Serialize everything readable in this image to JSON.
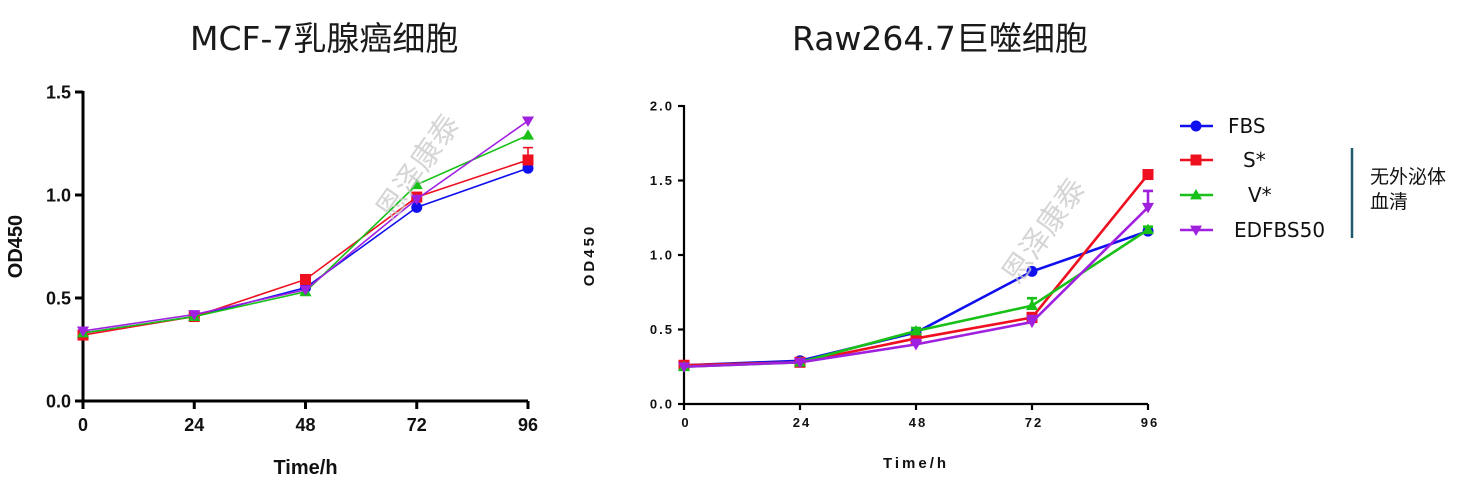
{
  "colors": {
    "FBS": "#1010ee",
    "S": "#ee1020",
    "V": "#18c018",
    "EDFBS50": "#a020e0",
    "bracket": "#1d5a6a",
    "edfbs_label": "#c00000"
  },
  "watermark": "恩泽康泰",
  "legend": {
    "entries": [
      {
        "label": "FBS",
        "series": "FBS",
        "marker": "circle"
      },
      {
        "label": "S*",
        "series": "S",
        "marker": "square"
      },
      {
        "label": "V*",
        "series": "V",
        "marker": "triangle-up"
      },
      {
        "label": "EDFBS50",
        "series": "EDFBS50",
        "marker": "triangle-down"
      }
    ],
    "bracket_line1": "无外泌体",
    "bracket_line2": "血清"
  },
  "chart_data": [
    {
      "type": "line",
      "title": "MCF-7乳腺癌细胞",
      "xlabel": "Time/h",
      "ylabel": "OD450",
      "x": [
        0,
        24,
        48,
        72,
        96
      ],
      "xticks": [
        "0",
        "24",
        "48",
        "72",
        "96"
      ],
      "yticks": [
        "0.0",
        "0.5",
        "1.0",
        "1.5"
      ],
      "ylim": [
        0,
        1.5
      ],
      "xlim": [
        0,
        96
      ],
      "series": [
        {
          "name": "FBS",
          "marker": "circle",
          "values": [
            0.33,
            0.41,
            0.55,
            0.94,
            1.13
          ],
          "errors": [
            0.01,
            0.01,
            0.01,
            0.01,
            0.03
          ]
        },
        {
          "name": "S*",
          "marker": "square",
          "values": [
            0.32,
            0.41,
            0.59,
            0.99,
            1.17
          ],
          "errors": [
            0.01,
            0.01,
            0.01,
            0.02,
            0.06
          ]
        },
        {
          "name": "V*",
          "marker": "triangle-up",
          "values": [
            0.33,
            0.41,
            0.53,
            1.05,
            1.29
          ],
          "errors": [
            0.01,
            0.01,
            0.01,
            0.01,
            0.01
          ]
        },
        {
          "name": "EDFBS50",
          "marker": "triangle-down",
          "values": [
            0.34,
            0.42,
            0.54,
            0.98,
            1.36
          ],
          "errors": [
            0.01,
            0.01,
            0.01,
            0.01,
            0.01
          ]
        }
      ]
    },
    {
      "type": "line",
      "title": "Raw264.7巨噬细胞",
      "xlabel": "Time/h",
      "ylabel": "OD450",
      "x": [
        0,
        24,
        48,
        72,
        96
      ],
      "xticks": [
        "0",
        "24",
        "48",
        "72",
        "96"
      ],
      "yticks": [
        "0.0",
        "0.5",
        "1.0",
        "1.5",
        "2.0"
      ],
      "ylim": [
        0,
        2.0
      ],
      "xlim": [
        0,
        96
      ],
      "series": [
        {
          "name": "FBS",
          "marker": "circle",
          "values": [
            0.26,
            0.29,
            0.48,
            0.89,
            1.16
          ],
          "errors": [
            0.01,
            0.01,
            0.01,
            0.01,
            0.01
          ]
        },
        {
          "name": "S*",
          "marker": "square",
          "values": [
            0.26,
            0.28,
            0.44,
            0.58,
            1.54
          ],
          "errors": [
            0.01,
            0.01,
            0.02,
            0.03,
            0.01
          ]
        },
        {
          "name": "V*",
          "marker": "triangle-up",
          "values": [
            0.25,
            0.28,
            0.49,
            0.66,
            1.17
          ],
          "errors": [
            0.01,
            0.01,
            0.02,
            0.05,
            0.02
          ]
        },
        {
          "name": "EDFBS50",
          "marker": "triangle-down",
          "values": [
            0.25,
            0.28,
            0.4,
            0.55,
            1.32
          ],
          "errors": [
            0.01,
            0.01,
            0.03,
            0.04,
            0.11
          ]
        }
      ]
    }
  ]
}
